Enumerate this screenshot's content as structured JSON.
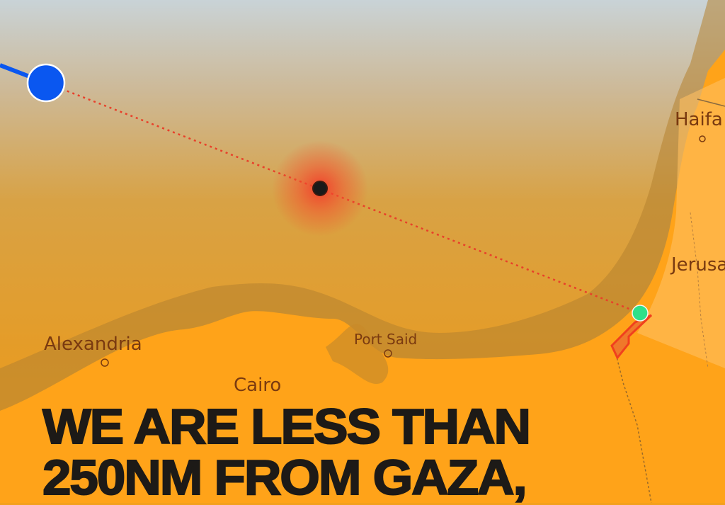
{
  "map": {
    "cities": {
      "haifa": "Haifa",
      "jerusalem": "Jerusalem",
      "alexandria": "Alexandria",
      "port_said": "Port Said",
      "cairo": "Cairo"
    },
    "markers": {
      "vessel": {
        "color": "#0a57f0"
      },
      "event": {
        "color": "#1a1a1a",
        "halo_color": "#f23a2a"
      },
      "destination": {
        "color": "#2ee08a"
      },
      "route_color": "#e8402a",
      "gaza_outline_color": "#f0401e"
    },
    "colors": {
      "sky": "#c8d2d6",
      "sea": "#e39a2a",
      "land": "#ffa319",
      "coastal_band": "#b4822f"
    }
  },
  "headline": {
    "line1": "WE ARE LESS THAN",
    "line2": "250NM FROM GAZA,"
  }
}
